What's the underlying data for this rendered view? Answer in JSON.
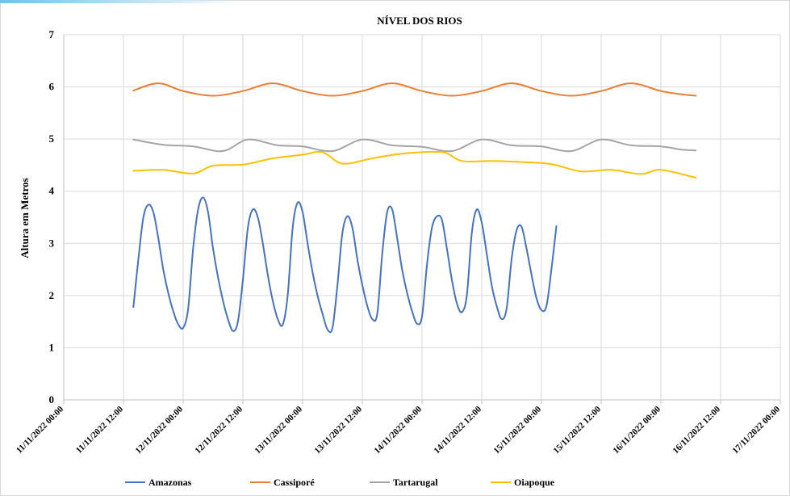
{
  "chart_data": {
    "type": "line",
    "title": "NÍVEL DOS RIOS",
    "xlabel": "",
    "ylabel": "Altura  em Metros",
    "ylim": [
      0,
      7
    ],
    "yticks": [
      "0",
      "1",
      "2",
      "3",
      "4",
      "5",
      "6",
      "7"
    ],
    "xlim": [
      "2022-11-11 00:00",
      "2022-11-17 00:00"
    ],
    "xticks": [
      "11/11/2022 00:00",
      "11/11/2022 12:00",
      "12/11/2022 00:00",
      "12/11/2022 12:00",
      "13/11/2022 00:00",
      "13/11/2022 12:00",
      "14/11/2022 00:00",
      "14/11/2022 12:00",
      "15/11/2022 00:00",
      "15/11/2022 12:00",
      "16/11/2022 00:00",
      "16/11/2022 12:00",
      "17/11/2022 00:00"
    ],
    "grid": true,
    "legend": "bottom",
    "series": [
      {
        "name": "Amazonas",
        "color": "#4472c4",
        "points": [
          [
            "2022-11-11 14:00",
            1.78
          ],
          [
            "2022-11-11 15:00",
            2.7
          ],
          [
            "2022-11-11 16:00",
            3.5
          ],
          [
            "2022-11-11 17:00",
            3.74
          ],
          [
            "2022-11-11 18:00",
            3.6
          ],
          [
            "2022-11-11 19:00",
            3.1
          ],
          [
            "2022-11-11 20:00",
            2.5
          ],
          [
            "2022-11-11 21:00",
            2.05
          ],
          [
            "2022-11-11 22:00",
            1.7
          ],
          [
            "2022-11-11 23:00",
            1.45
          ],
          [
            "2022-11-12 00:00",
            1.38
          ],
          [
            "2022-11-12 01:00",
            1.75
          ],
          [
            "2022-11-12 02:00",
            2.9
          ],
          [
            "2022-11-12 03:00",
            3.65
          ],
          [
            "2022-11-12 04:00",
            3.88
          ],
          [
            "2022-11-12 05:00",
            3.6
          ],
          [
            "2022-11-12 06:00",
            2.9
          ],
          [
            "2022-11-12 07:00",
            2.35
          ],
          [
            "2022-11-12 08:00",
            1.9
          ],
          [
            "2022-11-12 09:00",
            1.55
          ],
          [
            "2022-11-12 10:00",
            1.32
          ],
          [
            "2022-11-12 11:00",
            1.5
          ],
          [
            "2022-11-12 12:00",
            2.3
          ],
          [
            "2022-11-12 13:00",
            3.3
          ],
          [
            "2022-11-12 14:00",
            3.65
          ],
          [
            "2022-11-12 15:00",
            3.5
          ],
          [
            "2022-11-12 16:00",
            3.0
          ],
          [
            "2022-11-12 17:00",
            2.4
          ],
          [
            "2022-11-12 18:00",
            1.9
          ],
          [
            "2022-11-12 19:00",
            1.55
          ],
          [
            "2022-11-12 20:00",
            1.44
          ],
          [
            "2022-11-12 21:00",
            2.0
          ],
          [
            "2022-11-12 22:00",
            3.3
          ],
          [
            "2022-11-12 23:00",
            3.78
          ],
          [
            "2022-11-13 00:00",
            3.6
          ],
          [
            "2022-11-13 01:00",
            3.0
          ],
          [
            "2022-11-13 02:00",
            2.45
          ],
          [
            "2022-11-13 03:00",
            2.0
          ],
          [
            "2022-11-13 04:00",
            1.65
          ],
          [
            "2022-11-13 05:00",
            1.35
          ],
          [
            "2022-11-13 06:00",
            1.38
          ],
          [
            "2022-11-13 07:00",
            2.2
          ],
          [
            "2022-11-13 08:00",
            3.2
          ],
          [
            "2022-11-13 09:00",
            3.52
          ],
          [
            "2022-11-13 10:00",
            3.3
          ],
          [
            "2022-11-13 11:00",
            2.7
          ],
          [
            "2022-11-13 12:00",
            2.2
          ],
          [
            "2022-11-13 13:00",
            1.8
          ],
          [
            "2022-11-13 14:00",
            1.55
          ],
          [
            "2022-11-13 15:00",
            1.65
          ],
          [
            "2022-11-13 16:00",
            2.8
          ],
          [
            "2022-11-13 17:00",
            3.6
          ],
          [
            "2022-11-13 18:00",
            3.65
          ],
          [
            "2022-11-13 19:00",
            3.1
          ],
          [
            "2022-11-13 20:00",
            2.5
          ],
          [
            "2022-11-13 21:00",
            2.05
          ],
          [
            "2022-11-13 22:00",
            1.7
          ],
          [
            "2022-11-13 23:00",
            1.46
          ],
          [
            "2022-11-14 00:00",
            1.6
          ],
          [
            "2022-11-14 01:00",
            2.6
          ],
          [
            "2022-11-14 02:00",
            3.3
          ],
          [
            "2022-11-14 03:00",
            3.52
          ],
          [
            "2022-11-14 04:00",
            3.45
          ],
          [
            "2022-11-14 05:00",
            2.9
          ],
          [
            "2022-11-14 06:00",
            2.3
          ],
          [
            "2022-11-14 07:00",
            1.85
          ],
          [
            "2022-11-14 08:00",
            1.68
          ],
          [
            "2022-11-14 09:00",
            2.0
          ],
          [
            "2022-11-14 10:00",
            3.2
          ],
          [
            "2022-11-14 11:00",
            3.65
          ],
          [
            "2022-11-14 12:00",
            3.4
          ],
          [
            "2022-11-14 13:00",
            2.8
          ],
          [
            "2022-11-14 14:00",
            2.2
          ],
          [
            "2022-11-14 15:00",
            1.8
          ],
          [
            "2022-11-14 16:00",
            1.55
          ],
          [
            "2022-11-14 17:00",
            1.75
          ],
          [
            "2022-11-14 18:00",
            2.7
          ],
          [
            "2022-11-14 19:00",
            3.25
          ],
          [
            "2022-11-14 20:00",
            3.32
          ],
          [
            "2022-11-14 21:00",
            2.9
          ],
          [
            "2022-11-14 22:00",
            2.4
          ],
          [
            "2022-11-14 23:00",
            1.95
          ],
          [
            "2022-11-15 00:00",
            1.72
          ],
          [
            "2022-11-15 01:00",
            1.8
          ],
          [
            "2022-11-15 02:00",
            2.5
          ],
          [
            "2022-11-15 03:00",
            3.33
          ]
        ]
      },
      {
        "name": "Cassiporé",
        "color": "#ed7d31",
        "points": [
          [
            "2022-11-11 14:00",
            5.93
          ],
          [
            "2022-11-11 19:00",
            6.07
          ],
          [
            "2022-11-12 00:00",
            5.92
          ],
          [
            "2022-11-12 06:00",
            5.83
          ],
          [
            "2022-11-12 12:00",
            5.92
          ],
          [
            "2022-11-12 18:00",
            6.07
          ],
          [
            "2022-11-13 00:00",
            5.92
          ],
          [
            "2022-11-13 06:00",
            5.83
          ],
          [
            "2022-11-13 12:00",
            5.92
          ],
          [
            "2022-11-13 18:00",
            6.07
          ],
          [
            "2022-11-14 00:00",
            5.92
          ],
          [
            "2022-11-14 06:00",
            5.83
          ],
          [
            "2022-11-14 12:00",
            5.92
          ],
          [
            "2022-11-14 18:00",
            6.07
          ],
          [
            "2022-11-15 00:00",
            5.92
          ],
          [
            "2022-11-15 06:00",
            5.83
          ],
          [
            "2022-11-15 12:00",
            5.92
          ],
          [
            "2022-11-15 18:00",
            6.07
          ],
          [
            "2022-11-16 00:00",
            5.92
          ],
          [
            "2022-11-16 04:00",
            5.86
          ],
          [
            "2022-11-16 07:00",
            5.83
          ]
        ]
      },
      {
        "name": "Tartarugal",
        "color": "#a5a5a5",
        "points": [
          [
            "2022-11-11 14:00",
            4.99
          ],
          [
            "2022-11-11 20:00",
            4.89
          ],
          [
            "2022-11-12 02:00",
            4.86
          ],
          [
            "2022-11-12 08:00",
            4.77
          ],
          [
            "2022-11-12 13:00",
            4.99
          ],
          [
            "2022-11-12 19:00",
            4.88
          ],
          [
            "2022-11-13 00:00",
            4.86
          ],
          [
            "2022-11-13 06:00",
            4.77
          ],
          [
            "2022-11-13 12:00",
            4.99
          ],
          [
            "2022-11-13 18:00",
            4.88
          ],
          [
            "2022-11-14 00:00",
            4.85
          ],
          [
            "2022-11-14 06:00",
            4.77
          ],
          [
            "2022-11-14 12:00",
            4.99
          ],
          [
            "2022-11-14 18:00",
            4.88
          ],
          [
            "2022-11-15 00:00",
            4.86
          ],
          [
            "2022-11-15 06:00",
            4.77
          ],
          [
            "2022-11-15 12:00",
            4.99
          ],
          [
            "2022-11-15 18:00",
            4.88
          ],
          [
            "2022-11-16 00:00",
            4.86
          ],
          [
            "2022-11-16 04:00",
            4.8
          ],
          [
            "2022-11-16 07:00",
            4.78
          ]
        ]
      },
      {
        "name": "Oiapoque",
        "color": "#ffc000",
        "points": [
          [
            "2022-11-11 14:00",
            4.39
          ],
          [
            "2022-11-11 20:00",
            4.41
          ],
          [
            "2022-11-12 02:00",
            4.34
          ],
          [
            "2022-11-12 06:00",
            4.49
          ],
          [
            "2022-11-12 12:00",
            4.51
          ],
          [
            "2022-11-12 18:00",
            4.63
          ],
          [
            "2022-11-13 00:00",
            4.7
          ],
          [
            "2022-11-13 04:00",
            4.75
          ],
          [
            "2022-11-13 08:00",
            4.53
          ],
          [
            "2022-11-13 14:00",
            4.63
          ],
          [
            "2022-11-13 20:00",
            4.72
          ],
          [
            "2022-11-14 04:00",
            4.75
          ],
          [
            "2022-11-14 08:00",
            4.58
          ],
          [
            "2022-11-14 14:00",
            4.58
          ],
          [
            "2022-11-14 20:00",
            4.56
          ],
          [
            "2022-11-15 02:00",
            4.52
          ],
          [
            "2022-11-15 08:00",
            4.38
          ],
          [
            "2022-11-15 14:00",
            4.41
          ],
          [
            "2022-11-15 20:00",
            4.33
          ],
          [
            "2022-11-16 00:00",
            4.41
          ],
          [
            "2022-11-16 07:00",
            4.26
          ]
        ]
      }
    ]
  }
}
